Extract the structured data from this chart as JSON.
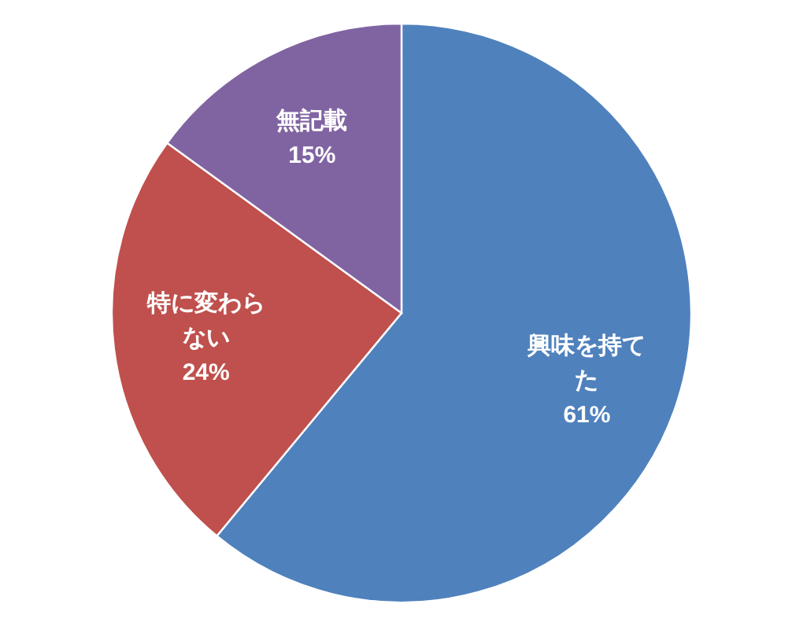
{
  "chart_data": {
    "type": "pie",
    "categories": [
      "興味を持てた",
      "特に変わらない",
      "無記載"
    ],
    "values": [
      61,
      24,
      15
    ],
    "colors": [
      "#4f81bd",
      "#c0504d",
      "#8064a2"
    ],
    "value_labels": [
      "61%",
      "24%",
      "15%"
    ]
  }
}
